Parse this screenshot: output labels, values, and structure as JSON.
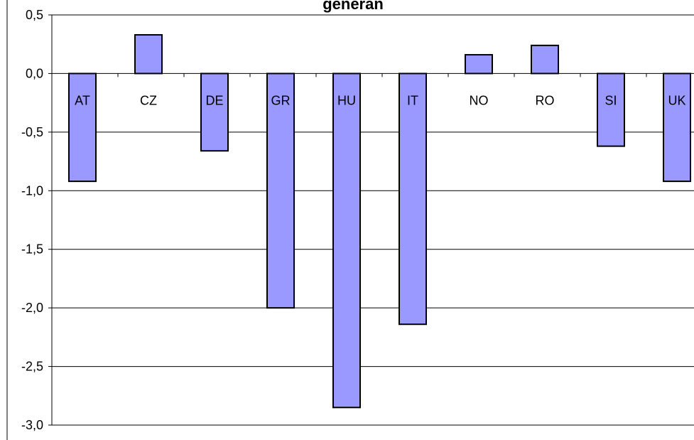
{
  "chart_data": {
    "type": "bar",
    "title": "generan",
    "xlabel": "",
    "ylabel": "",
    "categories": [
      "AT",
      "CZ",
      "DE",
      "GR",
      "HU",
      "IT",
      "NO",
      "RO",
      "SI",
      "UK"
    ],
    "values": [
      -0.92,
      0.33,
      -0.66,
      -2.0,
      -2.85,
      -2.14,
      0.16,
      0.24,
      -0.62,
      -0.92
    ],
    "ylim": [
      -3.0,
      0.5
    ],
    "yticks": [
      0.5,
      0.0,
      -0.5,
      -1.0,
      -1.5,
      -2.0,
      -2.5,
      -3.0
    ],
    "ytick_labels": [
      "0,5",
      "0,0",
      "-0,5",
      "-1,0",
      "-1,5",
      "-2,0",
      "-2,5",
      "-3,0"
    ],
    "grid": true,
    "legend": "none",
    "colors": {
      "bar_fill": "#9999FF",
      "bar_stroke": "#000000",
      "grid": "#000000",
      "axis": "#000000",
      "background": "#FFFFFF"
    }
  }
}
